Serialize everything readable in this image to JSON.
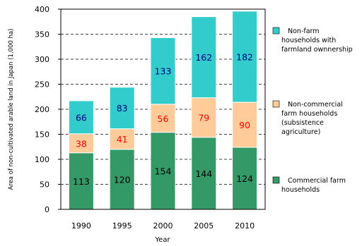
{
  "chart_data": {
    "type": "bar",
    "stacked": true,
    "categories": [
      "1990",
      "1995",
      "2000",
      "2005",
      "2010"
    ],
    "series": [
      {
        "name": "Commercial farm households",
        "values": [
          113,
          120,
          154,
          144,
          124
        ],
        "color": "#339966",
        "label_color": "#000000"
      },
      {
        "name": "Non-commercial farm households (subsistence agriculture)",
        "values": [
          38,
          41,
          56,
          79,
          90
        ],
        "color": "#ffcc99",
        "label_color": "#ff0000"
      },
      {
        "name": "Non-farm households with farmland ownnership",
        "values": [
          66,
          83,
          133,
          162,
          182
        ],
        "color": "#33cccc",
        "label_color": "#000080"
      }
    ],
    "legend_lines": [
      [
        "Non-farm",
        "households with",
        "farmland ownnership"
      ],
      [
        "Non-commercial",
        "farm households",
        "(subsistence",
        "agriculture)"
      ],
      [
        "Commercial farm",
        "households"
      ]
    ],
    "xlabel": "Year",
    "ylabel": "Area of non-cultivated arable land in Japan (1,000 ha)",
    "ylim": [
      0,
      400
    ],
    "yticks": [
      0,
      50,
      100,
      150,
      200,
      250,
      300,
      350,
      400
    ],
    "grid": "dashed horizontal",
    "legend_position": "right"
  }
}
